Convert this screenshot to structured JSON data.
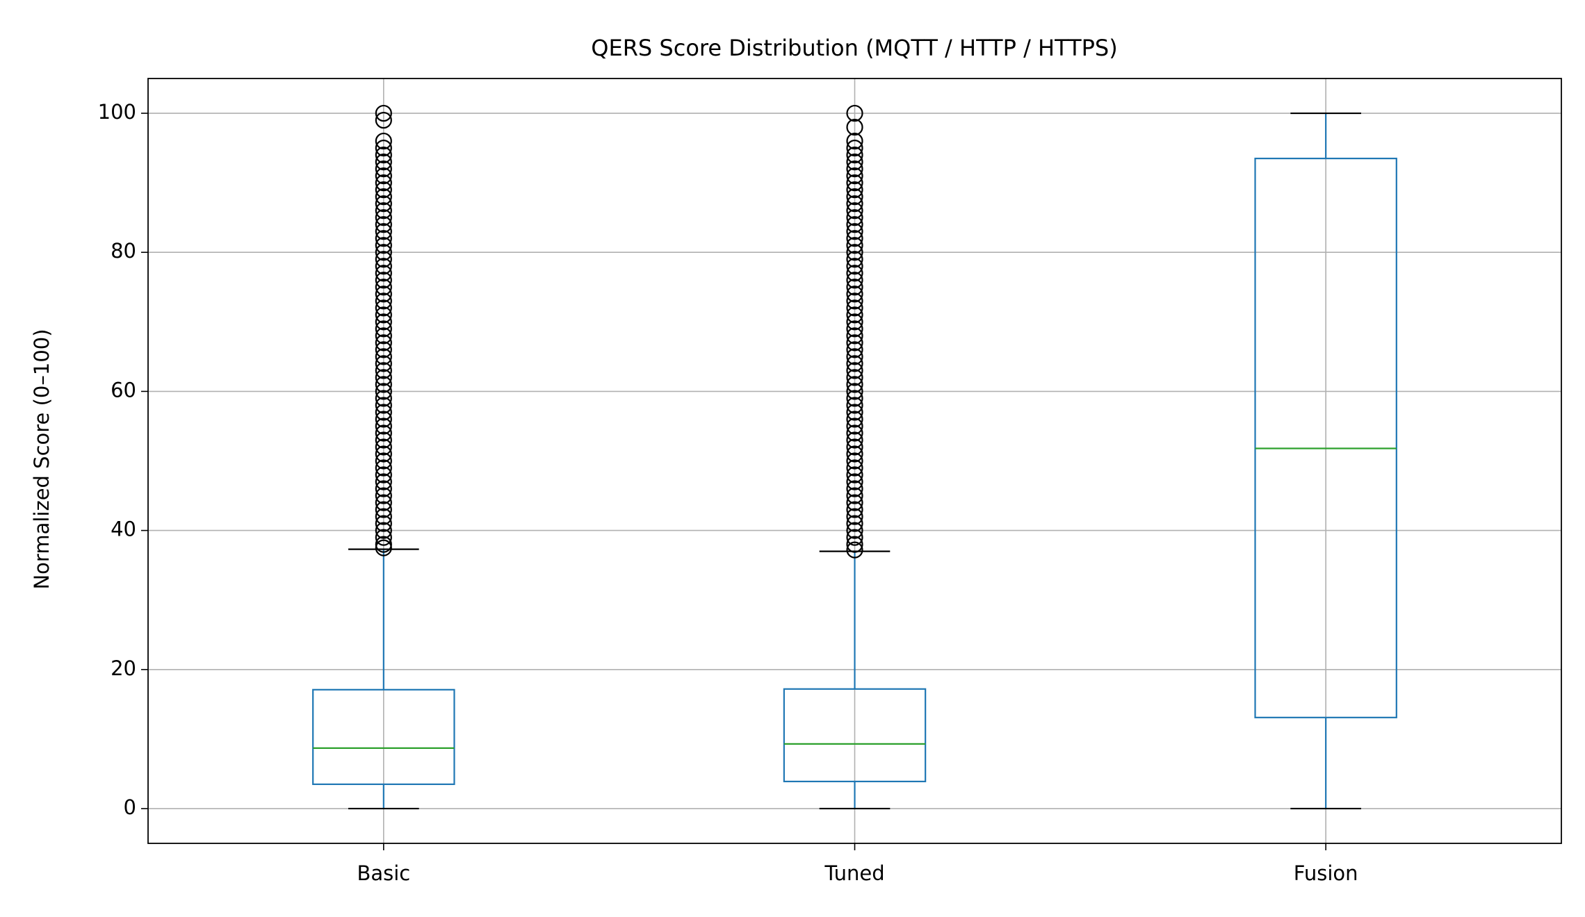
{
  "chart_data": {
    "type": "box",
    "title": "QERS Score Distribution (MQTT / HTTP / HTTPS)",
    "y_label": "Normalized Score (0–100)",
    "categories": [
      "Basic",
      "Tuned",
      "Fusion"
    ],
    "boxes": [
      {
        "low": 0,
        "q1": 3.5,
        "median": 8.7,
        "q3": 17.1,
        "high": 37.3,
        "outliers": [
          37.5,
          38,
          39,
          40,
          41,
          42,
          43,
          44,
          45,
          46,
          47,
          48,
          49,
          50,
          51,
          52,
          53,
          54,
          55,
          56,
          57,
          58,
          59,
          60,
          61,
          62,
          63,
          64,
          65,
          66,
          67,
          68,
          69,
          70,
          71,
          72,
          73,
          74,
          75,
          76,
          77,
          78,
          79,
          80,
          81,
          82,
          83,
          84,
          85,
          86,
          87,
          88,
          89,
          90,
          91,
          92,
          93,
          94,
          95,
          96,
          99,
          100
        ]
      },
      {
        "low": 0,
        "q1": 3.9,
        "median": 9.3,
        "q3": 17.2,
        "high": 37.0,
        "outliers": [
          37.2,
          38,
          39,
          40,
          41,
          42,
          43,
          44,
          45,
          46,
          47,
          48,
          49,
          50,
          51,
          52,
          53,
          54,
          55,
          56,
          57,
          58,
          59,
          60,
          61,
          62,
          63,
          64,
          65,
          66,
          67,
          68,
          69,
          70,
          71,
          72,
          73,
          74,
          75,
          76,
          77,
          78,
          79,
          80,
          81,
          82,
          83,
          84,
          85,
          86,
          87,
          88,
          89,
          90,
          91,
          92,
          93,
          94,
          95,
          96,
          98,
          100
        ]
      },
      {
        "low": 0,
        "q1": 13.1,
        "median": 51.8,
        "q3": 93.5,
        "high": 100,
        "outliers": []
      }
    ],
    "box_color": "#1f77b4",
    "median_color": "#2ca02c",
    "cap_color": "#000000",
    "outlier_color": "#000000",
    "ylim": [
      -5,
      105
    ],
    "yticks": [
      0,
      20,
      40,
      60,
      80,
      100
    ],
    "grid": true
  }
}
